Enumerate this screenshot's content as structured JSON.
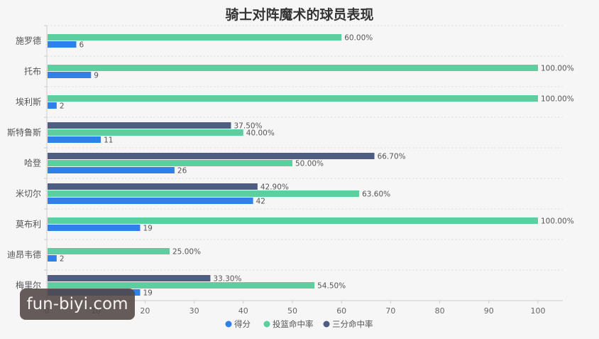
{
  "chart_data": {
    "type": "bar",
    "orientation": "horizontal",
    "title": "骑士对阵魔术的球员表现",
    "xlabel": "",
    "ylabel": "",
    "xlim": [
      0,
      105
    ],
    "x_ticks": [
      0,
      10,
      20,
      30,
      40,
      50,
      60,
      70,
      80,
      90,
      100
    ],
    "grid": true,
    "legend_position": "bottom",
    "categories": [
      "施罗德",
      "托布",
      "埃利斯",
      "斯特鲁斯",
      "哈登",
      "米切尔",
      "莫布利",
      "迪昂韦德",
      "梅里尔"
    ],
    "series": [
      {
        "name": "得分",
        "color": "#2f80e8",
        "values": [
          6,
          9,
          2,
          11,
          26,
          42,
          19,
          2,
          19
        ],
        "labels": [
          "6",
          "9",
          "2",
          "11",
          "26",
          "42",
          "19",
          "2",
          "19"
        ]
      },
      {
        "name": "投篮命中率",
        "color": "#5bcf9f",
        "values": [
          60.0,
          100.0,
          100.0,
          40.0,
          50.0,
          63.6,
          100.0,
          25.0,
          54.5
        ],
        "labels": [
          "60.00%",
          "100.00%",
          "100.00%",
          "40.00%",
          "50.00%",
          "63.60%",
          "100.00%",
          "25.00%",
          "54.50%"
        ]
      },
      {
        "name": "三分命中率",
        "color": "#4f5d82",
        "values": [
          null,
          null,
          null,
          37.5,
          66.7,
          42.9,
          null,
          null,
          33.3
        ],
        "labels": [
          null,
          null,
          null,
          "37.50%",
          "66.70%",
          "42.90%",
          null,
          null,
          "33.30%"
        ]
      }
    ]
  },
  "watermark": "fun-biyi.com"
}
